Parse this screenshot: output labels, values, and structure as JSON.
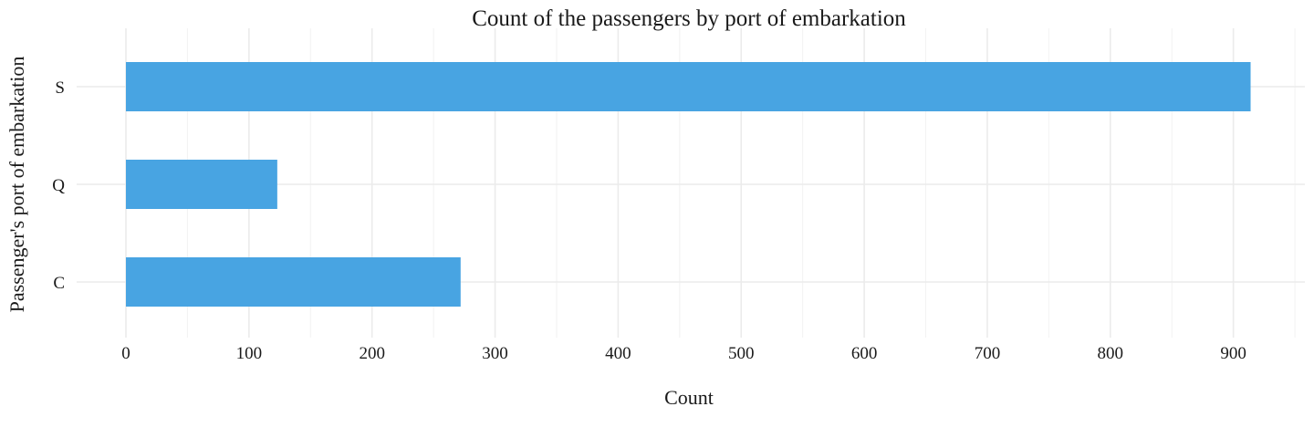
{
  "chart_data": {
    "type": "bar",
    "orientation": "horizontal",
    "title": "Count of the passengers by port of embarkation",
    "xlabel": "Count",
    "ylabel": "Passenger's port of embarkation",
    "categories": [
      "C",
      "Q",
      "S"
    ],
    "values": [
      272,
      123,
      914
    ],
    "xlim": [
      0,
      950
    ],
    "xticks": [
      0,
      100,
      200,
      300,
      400,
      500,
      600,
      700,
      800,
      900
    ],
    "grid": true,
    "bar_color": "#48A4E2"
  }
}
